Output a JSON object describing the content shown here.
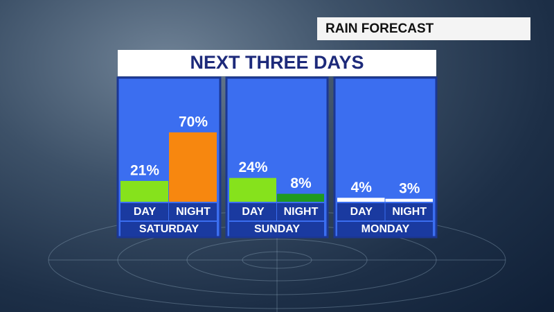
{
  "header": "RAIN FORECAST",
  "title": "NEXT THREE DAYS",
  "chart_data": [
    {
      "type": "bar",
      "title": "SATURDAY",
      "categories": [
        "DAY",
        "NIGHT"
      ],
      "values": [
        21,
        70
      ],
      "value_labels": [
        "21%",
        "70%"
      ],
      "colors": [
        "#86e21c",
        "#f7870f"
      ]
    },
    {
      "type": "bar",
      "title": "SUNDAY",
      "categories": [
        "DAY",
        "NIGHT"
      ],
      "values": [
        24,
        8
      ],
      "value_labels": [
        "24%",
        "8%"
      ],
      "colors": [
        "#86e21c",
        "#1f9a1f"
      ]
    },
    {
      "type": "bar",
      "title": "MONDAY",
      "categories": [
        "DAY",
        "NIGHT"
      ],
      "values": [
        4,
        3
      ],
      "value_labels": [
        "4%",
        "3%"
      ],
      "colors": [
        "#ffffff",
        "#ffffff"
      ]
    }
  ]
}
